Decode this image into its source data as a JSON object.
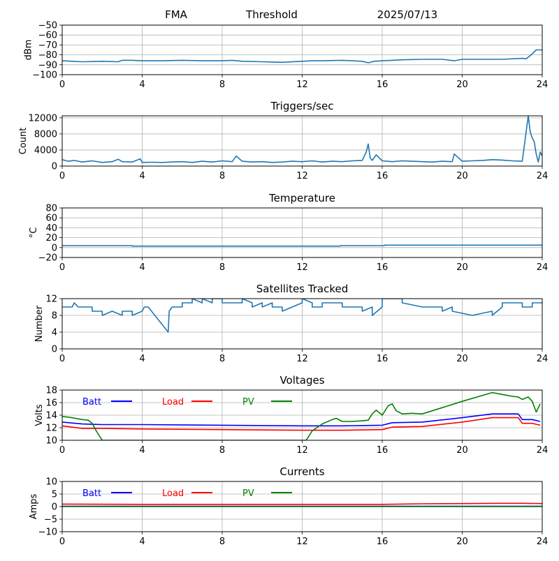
{
  "header": {
    "left": "FMA",
    "middle": "Threshold",
    "right": "2025/07/13"
  },
  "colors": {
    "series": "#1f77b4",
    "batt": "#0000ff",
    "load": "#ff0000",
    "pv": "#008000",
    "grid": "#b0b0b0"
  },
  "chart_data": [
    {
      "type": "line",
      "title": "",
      "ylabel": "dBm",
      "xlabel": "",
      "xlim": [
        0,
        24
      ],
      "ylim": [
        -100,
        -50
      ],
      "xticks": [
        0,
        4,
        8,
        12,
        16,
        20,
        24
      ],
      "yticks": [
        -100,
        -90,
        -80,
        -70,
        -60,
        -50
      ],
      "grid": true,
      "series": [
        {
          "color": "#1f77b4",
          "x": [
            0,
            0.5,
            1,
            2,
            2.8,
            3,
            3.5,
            4,
            5,
            6,
            7,
            8,
            8.5,
            9,
            10,
            11,
            12,
            12.5,
            13,
            14,
            15,
            15.3,
            15.6,
            16,
            16.5,
            17,
            18,
            19,
            19.6,
            20,
            21,
            22,
            23,
            23.2,
            23.5,
            23.7,
            24
          ],
          "values": [
            -86,
            -86.5,
            -87,
            -86.5,
            -87,
            -85.5,
            -85.5,
            -86,
            -86,
            -85.5,
            -86,
            -86,
            -85.5,
            -86.5,
            -87,
            -87.5,
            -86.5,
            -86,
            -86,
            -85.5,
            -86.5,
            -88,
            -86.5,
            -86,
            -85.5,
            -85,
            -84.5,
            -84.5,
            -86,
            -84.5,
            -84.5,
            -84.5,
            -83.5,
            -84,
            -79,
            -75,
            -75
          ]
        }
      ]
    },
    {
      "type": "line",
      "title": "Triggers/sec",
      "ylabel": "Count",
      "xlabel": "",
      "xlim": [
        0,
        24
      ],
      "ylim": [
        0,
        12500
      ],
      "xticks": [
        0,
        4,
        8,
        12,
        16,
        20,
        24
      ],
      "yticks": [
        0,
        4000,
        8000,
        12000
      ],
      "grid": true,
      "series": [
        {
          "color": "#1f77b4",
          "x": [
            0,
            0.3,
            0.6,
            1,
            1.5,
            2,
            2.5,
            2.8,
            3,
            3.5,
            3.9,
            4,
            4.5,
            5,
            5.5,
            6,
            6.5,
            7,
            7.5,
            8,
            8.5,
            8.7,
            9,
            9.5,
            10,
            10.5,
            11,
            11.5,
            12,
            12.5,
            13,
            13.5,
            14,
            14.5,
            15,
            15.2,
            15.3,
            15.4,
            15.5,
            15.7,
            16,
            16.5,
            17,
            17.5,
            18,
            18.5,
            19,
            19.5,
            19.6,
            20,
            20.5,
            21,
            21.5,
            22,
            22.5,
            23,
            23.3,
            23.4,
            23.5,
            23.6,
            23.7,
            23.8,
            23.9,
            24
          ],
          "values": [
            1600,
            1200,
            1400,
            1000,
            1300,
            900,
            1100,
            1700,
            1100,
            1000,
            1800,
            900,
            950,
            900,
            1000,
            1100,
            900,
            1200,
            1000,
            1300,
            1100,
            2500,
            1200,
            1000,
            1100,
            900,
            1000,
            1200,
            1100,
            1300,
            1000,
            1200,
            1100,
            1300,
            1400,
            3500,
            5500,
            2000,
            1400,
            2800,
            1300,
            1100,
            1300,
            1200,
            1100,
            1000,
            1200,
            1100,
            3000,
            1200,
            1300,
            1400,
            1600,
            1500,
            1300,
            1200,
            12500,
            8500,
            7000,
            6000,
            3000,
            1000,
            3500,
            2500
          ]
        }
      ]
    },
    {
      "type": "line",
      "title": "Temperature",
      "ylabel": "°C",
      "xlabel": "",
      "xlim": [
        0,
        24
      ],
      "ylim": [
        -20,
        80
      ],
      "xticks": [
        0,
        4,
        8,
        12,
        16,
        20,
        24
      ],
      "yticks": [
        -20,
        0,
        20,
        40,
        60,
        80
      ],
      "grid": true,
      "series": [
        {
          "color": "#1f77b4",
          "x": [
            0,
            3.5,
            3.5,
            13.9,
            13.9,
            16.1,
            16.1,
            24
          ],
          "values": [
            4,
            4,
            3,
            3,
            4,
            4,
            5,
            5
          ]
        }
      ]
    },
    {
      "type": "line",
      "title": "Satellites Tracked",
      "ylabel": "Number",
      "xlabel": "",
      "xlim": [
        0,
        24
      ],
      "ylim": [
        0,
        12
      ],
      "xticks": [
        0,
        4,
        8,
        12,
        16,
        20,
        24
      ],
      "yticks": [
        0,
        4,
        8,
        12
      ],
      "grid": true,
      "series": [
        {
          "color": "#1f77b4",
          "x": [
            0,
            0.5,
            0.6,
            0.8,
            0.8,
            1.5,
            1.5,
            2,
            2,
            2.5,
            2.5,
            3,
            3,
            3.5,
            3.5,
            4,
            4.1,
            4.3,
            5.3,
            5.35,
            5.5,
            6,
            6,
            6.5,
            6.5,
            7,
            7,
            7.5,
            7.5,
            8,
            8,
            9,
            9,
            9.5,
            9.5,
            10,
            10,
            10.5,
            10.5,
            11,
            11,
            11.5,
            11.5,
            12,
            12,
            12.5,
            12.5,
            13,
            13,
            14,
            14,
            15,
            15,
            15.5,
            15.5,
            16,
            16,
            17,
            17,
            18,
            18,
            19,
            19,
            19.5,
            19.5,
            20.5,
            20.5,
            21.5,
            21.5,
            22,
            22,
            23,
            23,
            23.5,
            23.5,
            24
          ],
          "values": [
            10,
            10,
            11,
            10,
            10,
            10,
            9,
            9,
            8,
            9,
            9,
            8,
            9,
            9,
            8,
            9,
            10,
            10,
            4,
            9,
            10,
            10,
            11,
            11,
            12,
            11,
            12,
            11,
            12,
            12,
            11,
            11,
            12,
            11,
            10,
            11,
            10,
            11,
            10,
            10,
            9,
            10,
            10,
            11,
            12,
            11,
            10,
            10,
            11,
            11,
            10,
            10,
            9,
            10,
            8,
            10,
            12,
            12,
            11,
            10,
            10,
            10,
            9,
            10,
            9,
            8,
            8,
            9,
            8,
            10,
            11,
            11,
            10,
            10,
            11,
            11
          ]
        }
      ]
    },
    {
      "type": "line",
      "title": "Voltages",
      "ylabel": "Volts",
      "xlabel": "",
      "xlim": [
        0,
        24
      ],
      "ylim": [
        10,
        18
      ],
      "xticks": [
        0,
        4,
        8,
        12,
        16,
        20,
        24
      ],
      "yticks": [
        10,
        12,
        14,
        16,
        18
      ],
      "grid": true,
      "legend": "top-left",
      "series": [
        {
          "name": "Batt",
          "color": "#0000ff",
          "x": [
            0,
            1,
            2,
            4,
            8,
            12,
            14,
            16,
            16.5,
            18,
            20,
            21.5,
            22.8,
            23,
            23.5,
            23.9
          ],
          "values": [
            12.9,
            12.6,
            12.5,
            12.5,
            12.4,
            12.3,
            12.3,
            12.4,
            12.8,
            12.9,
            13.6,
            14.2,
            14.2,
            13.3,
            13.3,
            13.0
          ]
        },
        {
          "name": "Load",
          "color": "#ff0000",
          "x": [
            0,
            1,
            2,
            4,
            8,
            12,
            14,
            16,
            16.5,
            18,
            20,
            21.5,
            22.8,
            23,
            23.5,
            23.9
          ],
          "values": [
            12.3,
            11.9,
            11.9,
            11.8,
            11.7,
            11.6,
            11.6,
            11.7,
            12.1,
            12.2,
            12.9,
            13.6,
            13.6,
            12.7,
            12.7,
            12.4
          ]
        },
        {
          "name": "PV",
          "color": "#008000",
          "x": [
            0,
            0.5,
            1,
            1.3,
            1.5,
            1.7,
            1.9,
            2.0,
            12.2,
            12.5,
            13,
            13.5,
            13.7,
            14,
            14.5,
            15,
            15.3,
            15.5,
            15.7,
            16,
            16.3,
            16.5,
            16.7,
            17,
            17.5,
            18,
            20,
            21.5,
            22,
            22.5,
            22.8,
            23,
            23.3,
            23.5,
            23.7,
            23.9
          ],
          "values": [
            13.8,
            13.6,
            13.3,
            13.2,
            12.7,
            11.5,
            10.5,
            10.0,
            10.0,
            11.5,
            12.6,
            13.3,
            13.5,
            13.0,
            13.0,
            13.1,
            13.2,
            14.2,
            14.8,
            14.0,
            15.5,
            15.8,
            14.7,
            14.2,
            14.3,
            14.2,
            16.2,
            17.6,
            17.3,
            17.0,
            16.9,
            16.5,
            16.9,
            16.2,
            14.5,
            15.8
          ]
        }
      ]
    },
    {
      "type": "line",
      "title": "Currents",
      "ylabel": "Amps",
      "xlabel": "",
      "xlim": [
        0,
        24
      ],
      "ylim": [
        -10,
        10
      ],
      "xticks": [
        0,
        4,
        8,
        12,
        16,
        20,
        24
      ],
      "yticks": [
        -10,
        -5,
        0,
        5,
        10
      ],
      "grid": true,
      "legend": "top-left",
      "series": [
        {
          "name": "Batt",
          "color": "#0000ff",
          "x": [
            0,
            24
          ],
          "values": [
            0.1,
            0.1
          ]
        },
        {
          "name": "Load",
          "color": "#ff0000",
          "x": [
            0,
            4,
            8,
            12,
            16,
            18,
            20,
            22,
            23,
            24
          ],
          "values": [
            1.0,
            0.9,
            0.9,
            0.9,
            0.9,
            1.1,
            1.2,
            1.3,
            1.3,
            1.2
          ]
        },
        {
          "name": "PV",
          "color": "#008000",
          "x": [
            0,
            24
          ],
          "values": [
            0.0,
            0.0
          ]
        }
      ]
    }
  ]
}
